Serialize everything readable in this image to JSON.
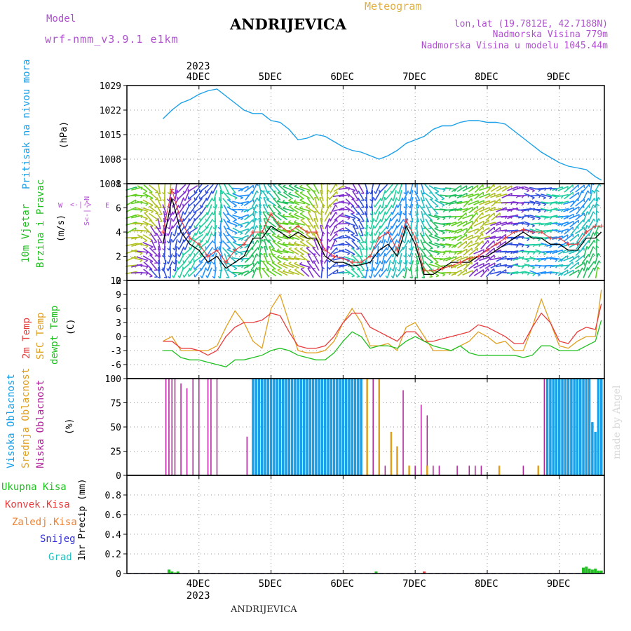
{
  "header": {
    "model_label": "Model",
    "model_name": "wrf-nmm_v3.9.1 e1km",
    "station": "ANDRIJEVICA",
    "meteogram": "Meteogram",
    "lonlat": "lon,lat (19.7812E, 42.7188N)",
    "elevation": "Nadmorska Visina 779m",
    "model_elevation": "Nadmorska Visina u modelu 1045.44m"
  },
  "footer": {
    "station": "ANDRIJEVICA",
    "credit": "made by Angel"
  },
  "time_axis": {
    "year": "2023",
    "days": [
      "4DEC",
      "5DEC",
      "6DEC",
      "7DEC",
      "8DEC",
      "9DEC"
    ]
  },
  "panels": {
    "pressure": {
      "label": "Pritisak na nivou mora",
      "unit": "(hPa)"
    },
    "wind": {
      "label1": "10m Vjetar",
      "label2": "Brzina i Pravac",
      "unit": "(m/s)",
      "compass": "W <- | -> E",
      "compass2": "S <- | -> N"
    },
    "temp": {
      "label1": "2m Temp",
      "label2": "SFC Temp",
      "label3": "dewpt Temp",
      "unit": "(C)"
    },
    "cloud": {
      "label1": "Visoka Oblacnost",
      "label2": "Srednja Oblacnost",
      "label3": "Niska Oblacnost",
      "unit": "(%)"
    },
    "precip": {
      "legend": [
        "Ukupna Kisa",
        "Konvek.Kisa",
        "Zaledj.Kisa",
        "Snijeg",
        "Grad"
      ],
      "unit": "1hr Precip (mm)"
    }
  },
  "colors": {
    "pressure": "#1aa0e8",
    "temp2m": "#e83c3c",
    "sfc": "#e0a020",
    "dew": "#20c020",
    "high": "#1aa0e8",
    "mid": "#e0a020",
    "low": "#b0209a",
    "windmean": "#000000",
    "gust": "#e83c3c",
    "total": "#20c020",
    "konv": "#e83c3c",
    "zal": "#f08030",
    "snow": "#3030e0",
    "grad": "#20c0c0",
    "magenta": "#b050d0"
  },
  "chart_data": [
    {
      "type": "line",
      "title": "Pritisak na nivou mora",
      "ylabel": "(hPa)",
      "ylim": [
        1001,
        1029
      ],
      "yticks": [
        1001,
        1008,
        1015,
        1022,
        1029
      ],
      "x_hours": [
        0,
        3,
        6,
        9,
        12,
        15,
        18,
        21,
        24,
        27,
        30,
        33,
        36,
        39,
        42,
        45,
        48,
        51,
        54,
        57,
        60,
        63,
        66,
        69,
        72,
        75,
        78,
        81,
        84,
        87,
        90,
        93,
        96,
        99,
        102,
        105,
        108,
        111,
        114,
        117,
        120,
        123,
        126,
        129,
        132,
        135,
        138,
        141,
        144,
        146
      ],
      "series": [
        {
          "values": [
            1019.5,
            1022,
            1024,
            1025,
            1026.5,
            1027.5,
            1028,
            1026,
            1024,
            1022,
            1021,
            1021,
            1019,
            1018.5,
            1016.5,
            1013.5,
            1014,
            1015,
            1014.5,
            1013,
            1011.5,
            1010.5,
            1010,
            1009,
            1008,
            1009,
            1010.5,
            1012.5,
            1013.5,
            1014.5,
            1016.5,
            1017.5,
            1017.5,
            1018.5,
            1019,
            1019,
            1018.5,
            1018.5,
            1018,
            1016,
            1014,
            1012,
            1010,
            1008.5,
            1007,
            1006,
            1005.5,
            1005,
            1003,
            1002
          ]
        }
      ]
    },
    {
      "type": "line",
      "title": "10m Vjetar Brzina i Pravac",
      "ylabel": "(m/s)",
      "ylim": [
        0,
        8
      ],
      "yticks": [
        0,
        2,
        4,
        6,
        8
      ],
      "x_hours": [
        0,
        3,
        6,
        9,
        12,
        15,
        18,
        21,
        24,
        27,
        30,
        33,
        36,
        39,
        42,
        45,
        48,
        51,
        54,
        57,
        60,
        63,
        66,
        69,
        72,
        75,
        78,
        81,
        84,
        87,
        90,
        93,
        96,
        99,
        102,
        105,
        108,
        111,
        114,
        117,
        120,
        123,
        126,
        129,
        132,
        135,
        138,
        141,
        144,
        146
      ],
      "series": [
        {
          "name": "mean",
          "values": [
            3,
            6.8,
            4,
            3,
            2.5,
            1.5,
            2,
            1,
            1.5,
            2,
            3.5,
            3.5,
            4.5,
            4,
            3.5,
            4,
            3.5,
            3.5,
            2,
            1.5,
            1.5,
            1.2,
            1.3,
            1.5,
            2.5,
            3,
            2,
            4.5,
            3,
            0.5,
            0.5,
            1,
            1.5,
            1.5,
            1.5,
            2,
            2,
            2.5,
            3,
            3.5,
            4,
            3.5,
            3.5,
            3,
            3,
            2.5,
            2.5,
            3.5,
            3.5,
            4
          ]
        },
        {
          "name": "gust",
          "values": [
            4,
            7.5,
            5,
            3.5,
            3,
            2,
            2.5,
            1.5,
            2.5,
            3,
            4,
            4,
            5.5,
            4.5,
            4,
            4.5,
            4,
            4,
            2.5,
            2,
            1.8,
            1.5,
            1.5,
            2,
            3.5,
            4,
            2.5,
            5,
            3.5,
            0.8,
            0.8,
            1,
            1.2,
            1.5,
            1.8,
            2,
            2.5,
            3,
            3.5,
            4,
            4.2,
            4,
            4,
            3.5,
            3.5,
            3,
            3,
            4,
            4.5,
            4.5
          ]
        }
      ]
    },
    {
      "type": "line",
      "title": "Temperatura",
      "ylabel": "(C)",
      "ylim": [
        -9,
        12
      ],
      "yticks": [
        -6,
        -3,
        0,
        3,
        6,
        9,
        12
      ],
      "x_hours": [
        0,
        3,
        6,
        9,
        12,
        15,
        18,
        21,
        24,
        27,
        30,
        33,
        36,
        39,
        42,
        45,
        48,
        51,
        54,
        57,
        60,
        63,
        66,
        69,
        72,
        75,
        78,
        81,
        84,
        87,
        90,
        93,
        96,
        99,
        102,
        105,
        108,
        111,
        114,
        117,
        120,
        123,
        126,
        129,
        132,
        135,
        138,
        141,
        144,
        146
      ],
      "series": [
        {
          "name": "2m Temp",
          "values": [
            -1,
            -1,
            -2.5,
            -2.5,
            -3,
            -4,
            -3,
            0,
            2,
            3,
            3,
            3.5,
            5,
            4.5,
            1,
            -2,
            -2.5,
            -2.5,
            -2,
            0,
            3,
            5,
            5,
            2,
            1,
            0,
            -1,
            1,
            1,
            -1,
            -1,
            -0.5,
            0,
            0.5,
            1,
            2.5,
            2,
            1,
            0,
            -1.5,
            -1.5,
            2,
            5,
            3,
            -1,
            -1.5,
            1,
            2,
            1.5,
            7
          ]
        },
        {
          "name": "SFC Temp",
          "values": [
            -1,
            0,
            -3,
            -3,
            -3,
            -3,
            -2,
            2,
            5.5,
            3,
            -1,
            -2.5,
            6,
            9,
            3,
            -3,
            -3.5,
            -3.5,
            -3,
            -1,
            3,
            6,
            3,
            -2,
            -2,
            -1.5,
            -3,
            2,
            3,
            0,
            -3,
            -3,
            -3,
            -2,
            -1,
            1,
            0,
            -1.5,
            -1,
            -3,
            -3,
            2,
            8,
            3,
            -2,
            -2.5,
            -1,
            0,
            0,
            10
          ]
        },
        {
          "name": "dewpt Temp",
          "values": [
            -3,
            -3,
            -4.5,
            -5,
            -5,
            -5.5,
            -6,
            -6.5,
            -5,
            -5,
            -4.5,
            -4,
            -3,
            -2.5,
            -3,
            -4,
            -4.5,
            -5,
            -5,
            -3.5,
            -1,
            1,
            0,
            -2.5,
            -2,
            -2,
            -2.5,
            -1,
            0,
            -1,
            -2,
            -2.5,
            -3,
            -2,
            -3.5,
            -4,
            -4,
            -4,
            -4,
            -4,
            -4.5,
            -4,
            -2,
            -2,
            -3,
            -3,
            -3,
            -2,
            -1,
            3.5
          ]
        }
      ]
    },
    {
      "type": "bar",
      "title": "Oblacnost",
      "ylabel": "(%)",
      "ylim": [
        0,
        100
      ],
      "yticks": [
        0,
        25,
        50,
        75,
        100
      ],
      "series": [
        {
          "name": "Niska",
          "x_hours": [
            1,
            2,
            3,
            4,
            6,
            8,
            10,
            12,
            15,
            16,
            18,
            28,
            30,
            31,
            34,
            36,
            38,
            40,
            47,
            50,
            52,
            66,
            68,
            70,
            72,
            74,
            76,
            78,
            80,
            82,
            84,
            86,
            88,
            90,
            92,
            98,
            102,
            104,
            106,
            120,
            125,
            127,
            129,
            131,
            133,
            135,
            137,
            140,
            142,
            145
          ],
          "values": [
            100,
            100,
            100,
            100,
            95,
            90,
            100,
            100,
            100,
            100,
            100,
            40,
            100,
            100,
            100,
            100,
            100,
            100,
            80,
            100,
            100,
            100,
            100,
            100,
            100,
            10,
            10,
            10,
            88,
            10,
            10,
            73,
            62,
            10,
            10,
            10,
            10,
            10,
            10,
            10,
            10,
            100,
            100,
            100,
            100,
            100,
            100,
            100,
            100,
            100
          ]
        },
        {
          "name": "Srednja",
          "x_hours": [
            30,
            31,
            32,
            33,
            34,
            35,
            36,
            38,
            40,
            42,
            44,
            46,
            48,
            50,
            52,
            54,
            56,
            58,
            60,
            62,
            64,
            66,
            68,
            72,
            76,
            78,
            82,
            88,
            112,
            125
          ],
          "values": [
            100,
            100,
            100,
            100,
            100,
            100,
            100,
            100,
            100,
            100,
            100,
            100,
            100,
            100,
            100,
            100,
            100,
            100,
            100,
            100,
            100,
            100,
            100,
            100,
            45,
            30,
            10,
            10,
            10,
            10
          ]
        },
        {
          "name": "Visoka",
          "x_hours": [
            30,
            31,
            32,
            33,
            34,
            35,
            36,
            37,
            38,
            39,
            40,
            41,
            42,
            43,
            44,
            45,
            46,
            47,
            48,
            49,
            50,
            51,
            52,
            53,
            54,
            55,
            56,
            57,
            58,
            59,
            60,
            61,
            62,
            63,
            64,
            65,
            66,
            128,
            129,
            130,
            131,
            132,
            133,
            134,
            135,
            136,
            137,
            138,
            139,
            140,
            141,
            142,
            143,
            144,
            145,
            146
          ],
          "values": [
            100,
            100,
            100,
            100,
            100,
            100,
            100,
            100,
            100,
            100,
            100,
            100,
            100,
            100,
            100,
            100,
            100,
            100,
            100,
            100,
            100,
            100,
            100,
            100,
            100,
            100,
            100,
            100,
            100,
            100,
            100,
            100,
            100,
            100,
            100,
            100,
            100,
            100,
            100,
            100,
            100,
            100,
            100,
            100,
            100,
            100,
            100,
            100,
            100,
            100,
            100,
            100,
            55,
            45,
            100,
            100
          ]
        }
      ]
    },
    {
      "type": "bar",
      "title": "1hr Precip",
      "ylabel": "1hr Precip (mm)",
      "ylim": [
        0,
        1
      ],
      "yticks": [
        0,
        0.2,
        0.4,
        0.6,
        0.8
      ],
      "series": [
        {
          "name": "Ukupna Kisa",
          "x_hours": [
            2,
            3,
            4,
            5,
            71,
            140,
            141,
            142,
            143,
            144,
            145,
            146
          ],
          "values": [
            0.04,
            0.02,
            0.01,
            0.02,
            0.02,
            0.06,
            0.07,
            0.05,
            0.04,
            0.05,
            0.03,
            0.03
          ]
        },
        {
          "name": "Konvek.Kisa",
          "x_hours": [
            87
          ],
          "values": [
            0.02
          ]
        }
      ]
    }
  ]
}
